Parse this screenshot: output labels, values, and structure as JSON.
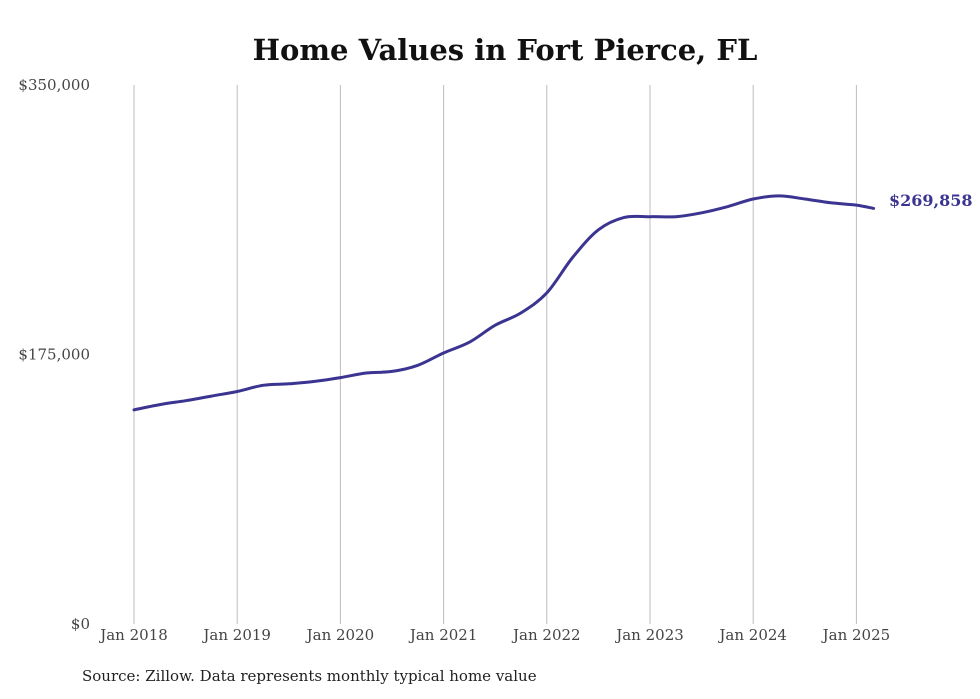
{
  "chart_data": {
    "type": "line",
    "title": "Home Values in Fort Pierce, FL",
    "xlabel": "",
    "ylabel": "",
    "ylim": [
      0,
      350000
    ],
    "y_ticks": [
      0,
      175000,
      350000
    ],
    "y_tick_labels": [
      "$0",
      "$175,000",
      "$350,000"
    ],
    "x_ticks": [
      "2018-01",
      "2019-01",
      "2020-01",
      "2021-01",
      "2022-01",
      "2023-01",
      "2024-01",
      "2025-01"
    ],
    "x_tick_labels": [
      "Jan 2018",
      "Jan 2019",
      "Jan 2020",
      "Jan 2021",
      "Jan 2022",
      "Jan 2023",
      "Jan 2024",
      "Jan 2025"
    ],
    "grid": "vertical",
    "line_color": "#3b3490",
    "end_label": "$269,858",
    "series": [
      {
        "points": [
          [
            "2018-01",
            139000
          ],
          [
            "2018-04",
            142500
          ],
          [
            "2018-07",
            145000
          ],
          [
            "2018-10",
            148000
          ],
          [
            "2019-01",
            151000
          ],
          [
            "2019-04",
            155000
          ],
          [
            "2019-07",
            156000
          ],
          [
            "2019-10",
            157500
          ],
          [
            "2020-01",
            160000
          ],
          [
            "2020-04",
            163000
          ],
          [
            "2020-07",
            164000
          ],
          [
            "2020-10",
            168000
          ],
          [
            "2021-01",
            176000
          ],
          [
            "2021-04",
            183000
          ],
          [
            "2021-07",
            194000
          ],
          [
            "2021-10",
            202000
          ],
          [
            "2022-01",
            215000
          ],
          [
            "2022-04",
            238000
          ],
          [
            "2022-07",
            256000
          ],
          [
            "2022-10",
            264000
          ],
          [
            "2023-01",
            264500
          ],
          [
            "2023-04",
            264500
          ],
          [
            "2023-07",
            267000
          ],
          [
            "2023-10",
            271000
          ],
          [
            "2024-01",
            276000
          ],
          [
            "2024-04",
            278000
          ],
          [
            "2024-07",
            276000
          ],
          [
            "2024-10",
            273500
          ],
          [
            "2025-01",
            272000
          ],
          [
            "2025-03",
            269858
          ]
        ]
      }
    ],
    "source": "Source: Zillow. Data represents monthly typical home value"
  }
}
